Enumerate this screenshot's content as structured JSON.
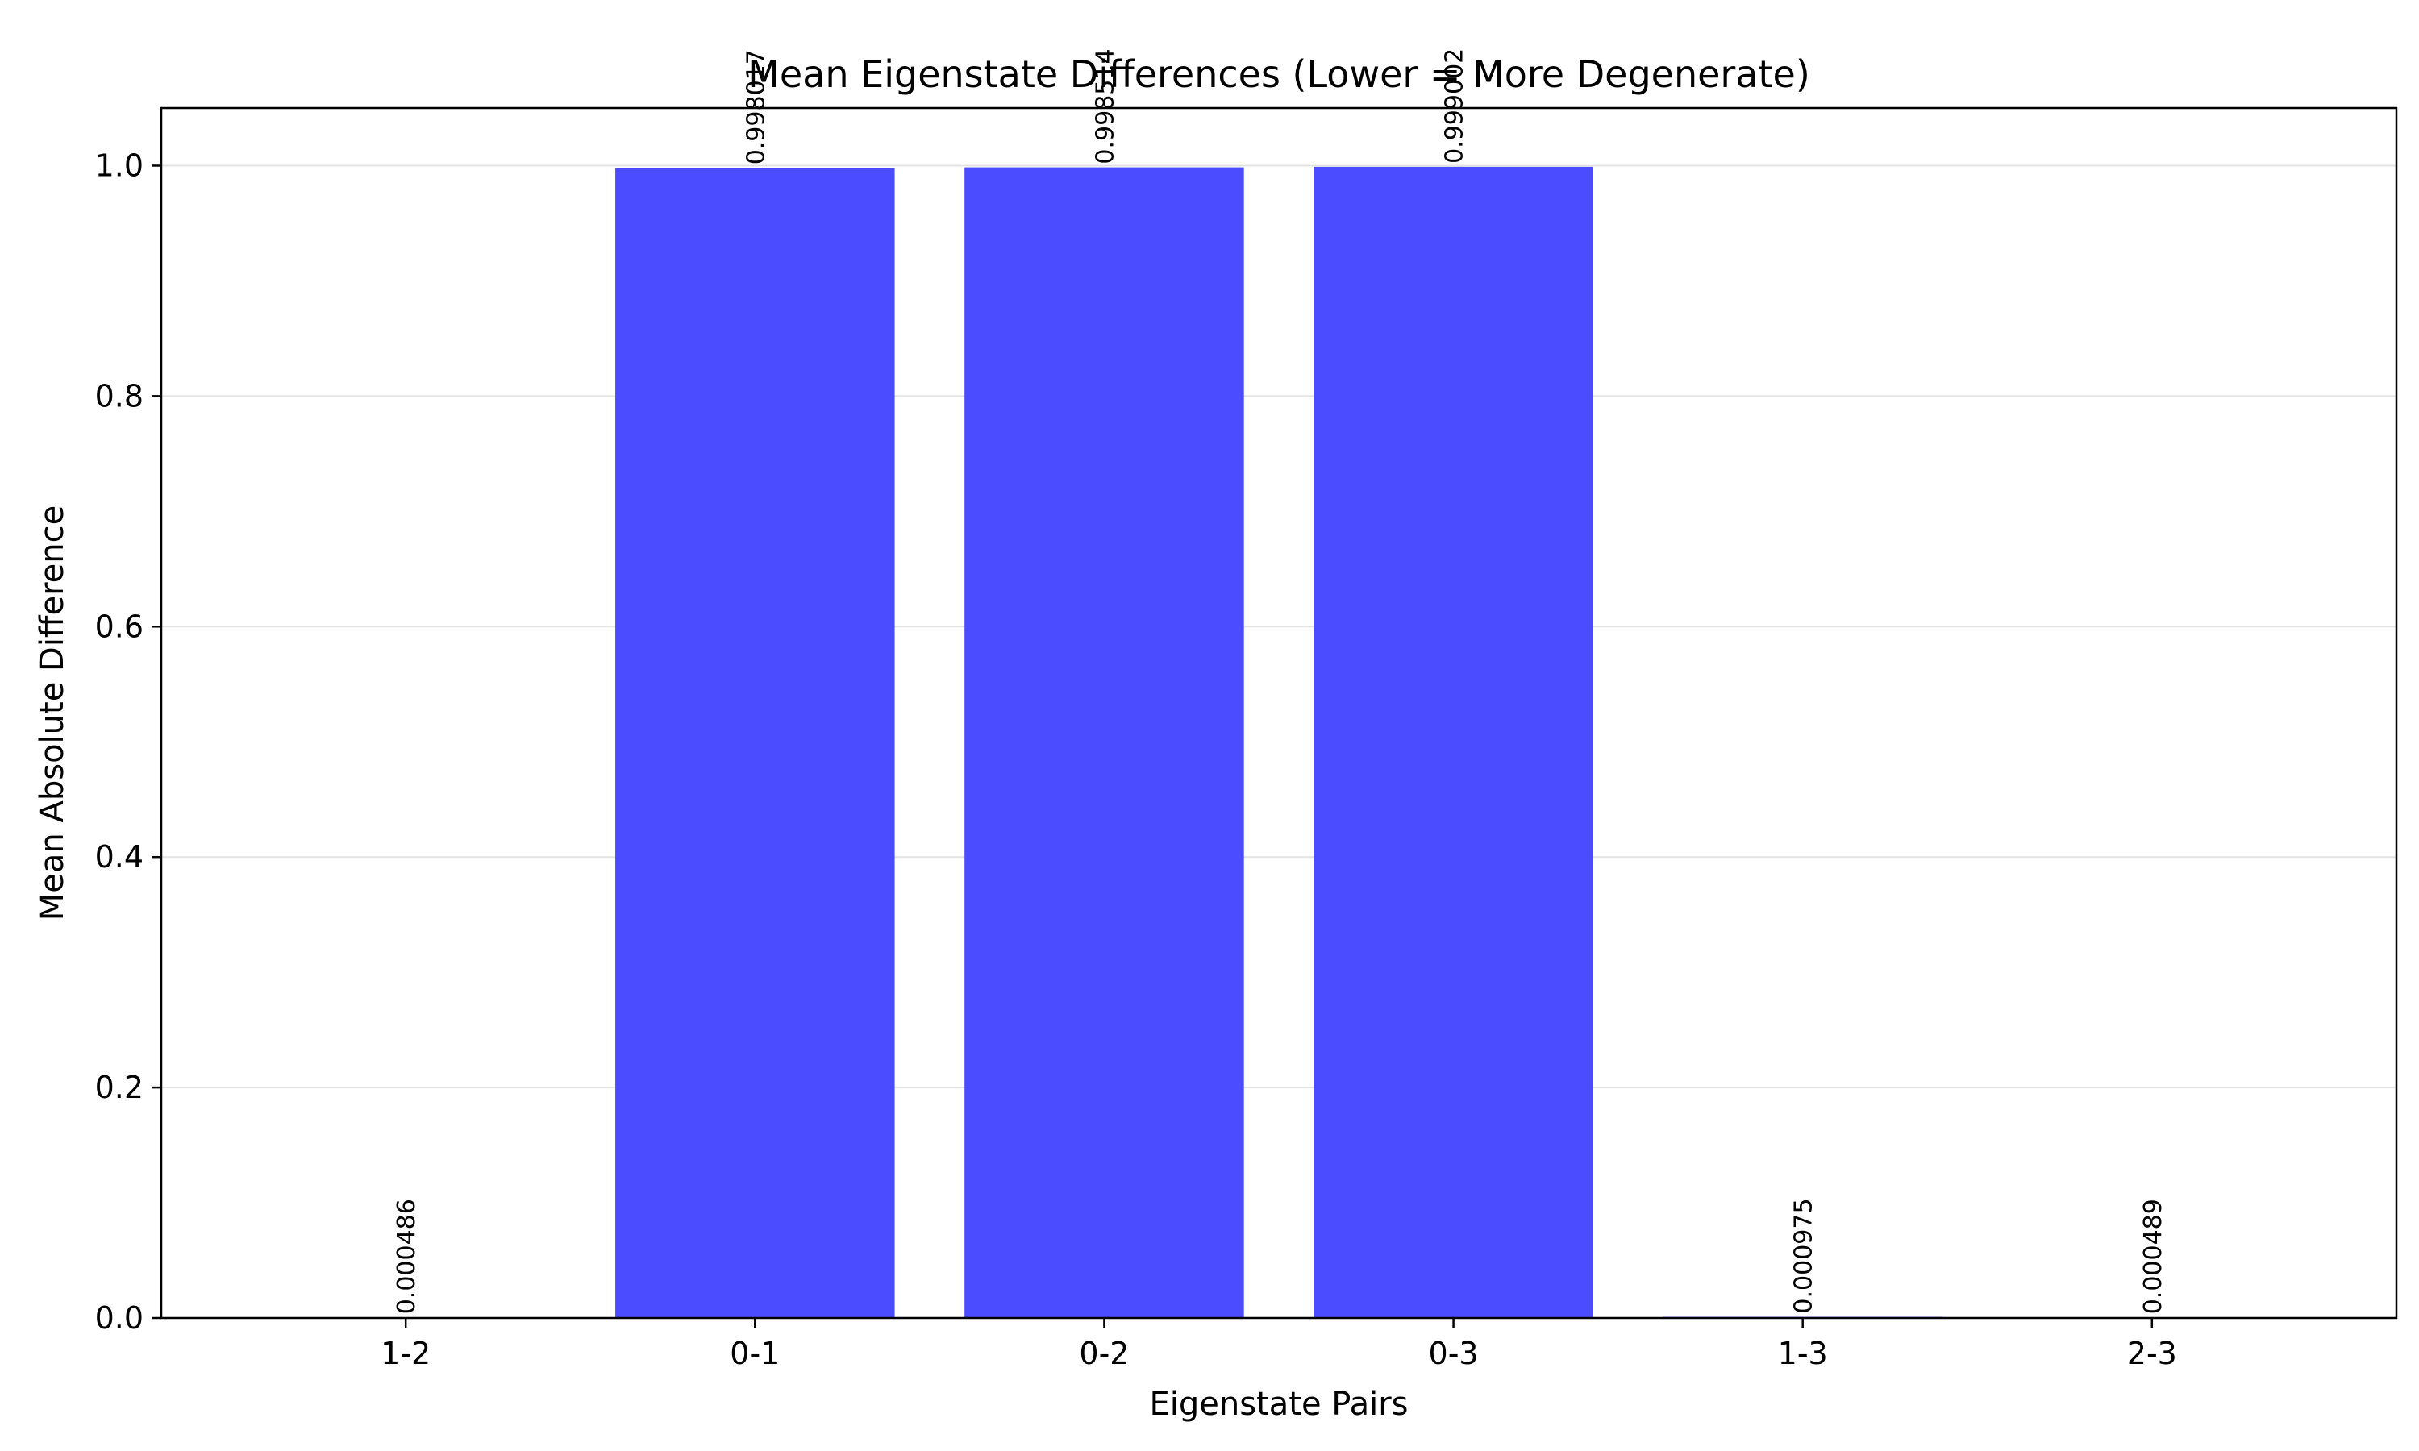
{
  "chart_data": {
    "type": "bar",
    "title": "Mean Eigenstate Differences (Lower = More Degenerate)",
    "xlabel": "Eigenstate Pairs",
    "ylabel": "Mean Absolute Difference",
    "categories": [
      "1-2",
      "0-1",
      "0-2",
      "0-3",
      "1-3",
      "2-3"
    ],
    "values": [
      0.000486,
      0.998017,
      0.998514,
      0.999002,
      0.000975,
      0.000489
    ],
    "value_labels": [
      "0.000486",
      "0.998017",
      "0.998514",
      "0.999002",
      "0.000975",
      "0.000489"
    ],
    "ylim": [
      0,
      1.05
    ],
    "yticks": [
      0.0,
      0.2,
      0.4,
      0.6,
      0.8,
      1.0
    ],
    "ytick_labels": [
      "0.0",
      "0.2",
      "0.4",
      "0.6",
      "0.8",
      "1.0"
    ],
    "grid": "y",
    "legend": "none",
    "colors": {
      "bar": "#4b4bff",
      "grid": "#e3e3e3",
      "axis": "#000000"
    }
  }
}
